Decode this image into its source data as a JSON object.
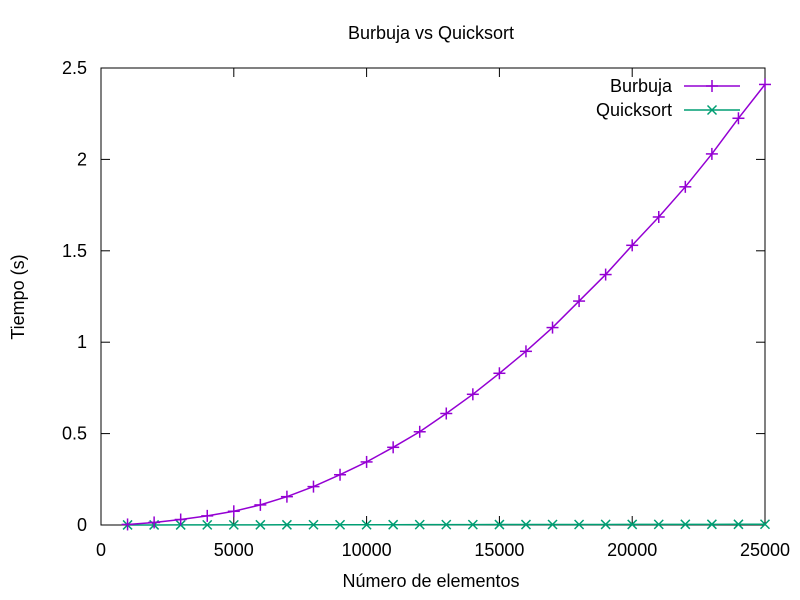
{
  "chart_data": {
    "type": "line",
    "title": "Burbuja vs Quicksort",
    "xlabel": "Número de elementos",
    "ylabel": "Tiempo (s)",
    "xlim": [
      0,
      25000
    ],
    "ylim": [
      0,
      2.5
    ],
    "x_ticks": [
      0,
      5000,
      10000,
      15000,
      20000,
      25000
    ],
    "x_tick_labels": [
      "0",
      "5000",
      "10000",
      "15000",
      "20000",
      "25000"
    ],
    "y_ticks": [
      0,
      0.5,
      1,
      1.5,
      2,
      2.5
    ],
    "y_tick_labels": [
      "0",
      "0.5",
      "1",
      "1.5",
      "2",
      "2.5"
    ],
    "grid": false,
    "legend_position": "top-right",
    "x": [
      1000,
      2000,
      3000,
      4000,
      5000,
      6000,
      7000,
      8000,
      9000,
      10000,
      11000,
      12000,
      13000,
      14000,
      15000,
      16000,
      17000,
      18000,
      19000,
      20000,
      21000,
      22000,
      23000,
      24000,
      25000
    ],
    "series": [
      {
        "name": "Burbuja",
        "color": "#9400d3",
        "marker": "plus",
        "values": [
          0.003,
          0.014,
          0.03,
          0.05,
          0.075,
          0.11,
          0.155,
          0.21,
          0.275,
          0.345,
          0.425,
          0.51,
          0.61,
          0.715,
          0.83,
          0.95,
          1.08,
          1.225,
          1.37,
          1.53,
          1.685,
          1.85,
          2.03,
          2.225,
          2.41
        ]
      },
      {
        "name": "Quicksort",
        "color": "#009e73",
        "marker": "cross",
        "values": [
          0.0002,
          0.0003,
          0.0005,
          0.0006,
          0.0008,
          0.0009,
          0.0011,
          0.0012,
          0.0014,
          0.0015,
          0.0017,
          0.0019,
          0.002,
          0.0022,
          0.0024,
          0.0025,
          0.0027,
          0.0029,
          0.003,
          0.0032,
          0.0034,
          0.0036,
          0.0037,
          0.0039,
          0.0041
        ]
      }
    ]
  }
}
